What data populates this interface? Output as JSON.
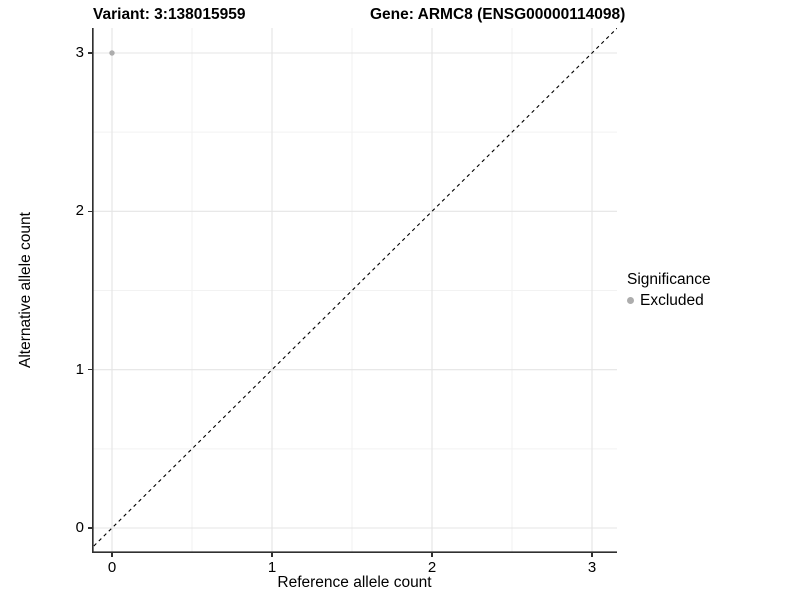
{
  "titles": {
    "variant": "Variant: 3:138015959",
    "gene": "Gene: ARMC8 (ENSG00000114098)"
  },
  "axes": {
    "x": {
      "label": "Reference allele count"
    },
    "y": {
      "label": "Alternative allele count"
    }
  },
  "legend": {
    "title": "Significance",
    "items": [
      {
        "label": "Excluded",
        "color": "#adadad",
        "shape": "circle"
      }
    ]
  },
  "chart_data": {
    "type": "scatter",
    "title": "Variant: 3:138015959 — Gene: ARMC8 (ENSG00000114098)",
    "xlabel": "Reference allele count",
    "ylabel": "Alternative allele count",
    "xticks": [
      0,
      1,
      2,
      3
    ],
    "yticks": [
      0,
      1,
      2,
      3
    ],
    "xlim": [
      -0.13,
      3.16
    ],
    "ylim": [
      -0.16,
      3.16
    ],
    "grid": "major and minor (0.5 steps), light grey on white",
    "legend_position": "right",
    "series": [
      {
        "name": "Excluded",
        "color": "#adadad",
        "points": [
          {
            "x": 0,
            "y": 3
          }
        ]
      }
    ],
    "identity_line": {
      "equation": "y = x",
      "style": "dashed",
      "color": "#000000"
    }
  },
  "colors": {
    "background": "#ffffff",
    "grid_major": "#e4e4e4",
    "grid_minor": "#f2f2f2",
    "axis_line": "#303030",
    "point": "#adadad",
    "text": "#000000"
  }
}
